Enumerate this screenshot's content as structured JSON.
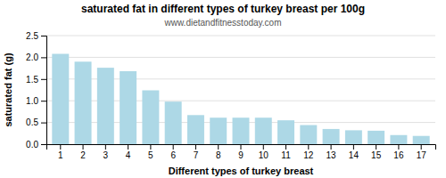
{
  "chart_data": {
    "type": "bar",
    "title": "saturated fat in different types of turkey breast per 100g",
    "subtitle": "www.dietandfitnesstoday.com",
    "xlabel": "Different types of turkey breast",
    "ylabel": "saturated fat (g)",
    "categories": [
      1,
      2,
      3,
      4,
      5,
      6,
      7,
      8,
      9,
      10,
      11,
      12,
      13,
      14,
      15,
      16,
      17
    ],
    "values": [
      2.08,
      1.9,
      1.76,
      1.68,
      1.24,
      0.98,
      0.67,
      0.61,
      0.61,
      0.61,
      0.55,
      0.44,
      0.35,
      0.32,
      0.31,
      0.21,
      0.19
    ],
    "color": "#add8e6",
    "ylim": [
      0,
      2.5
    ],
    "yticks": [
      {
        "value": 0,
        "label": "0.0"
      },
      0.5,
      {
        "value": 1,
        "label": "1.0"
      },
      1.5,
      {
        "value": 2,
        "label": "2.0"
      },
      2.5
    ],
    "grid": true
  }
}
